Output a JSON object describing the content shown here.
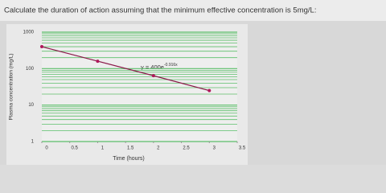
{
  "question": "Calculate the duration of action assuming that the minimum effective concentration is 5mg/L:",
  "chart_data": {
    "type": "line",
    "xlabel": "Time (hours)",
    "ylabel": "Plasma concentration (mg/L)",
    "annotation": {
      "text": "y = 400e",
      "superscript": "-0.916x"
    },
    "x": [
      0,
      1,
      2,
      3
    ],
    "series": [
      {
        "color": "#8b1a4a",
        "marker_color": "#b0185a",
        "values": [
          400,
          160,
          64,
          25
        ]
      }
    ],
    "xlim": [
      0,
      3.5
    ],
    "xticks": [
      0,
      0.5,
      1,
      1.5,
      2,
      2.5,
      3,
      3.5
    ],
    "ylim": [
      1,
      1000
    ],
    "yticks": [
      1,
      10,
      100,
      1000
    ],
    "log_y": true,
    "grid": true,
    "grid_color": "#5cbf6a"
  }
}
